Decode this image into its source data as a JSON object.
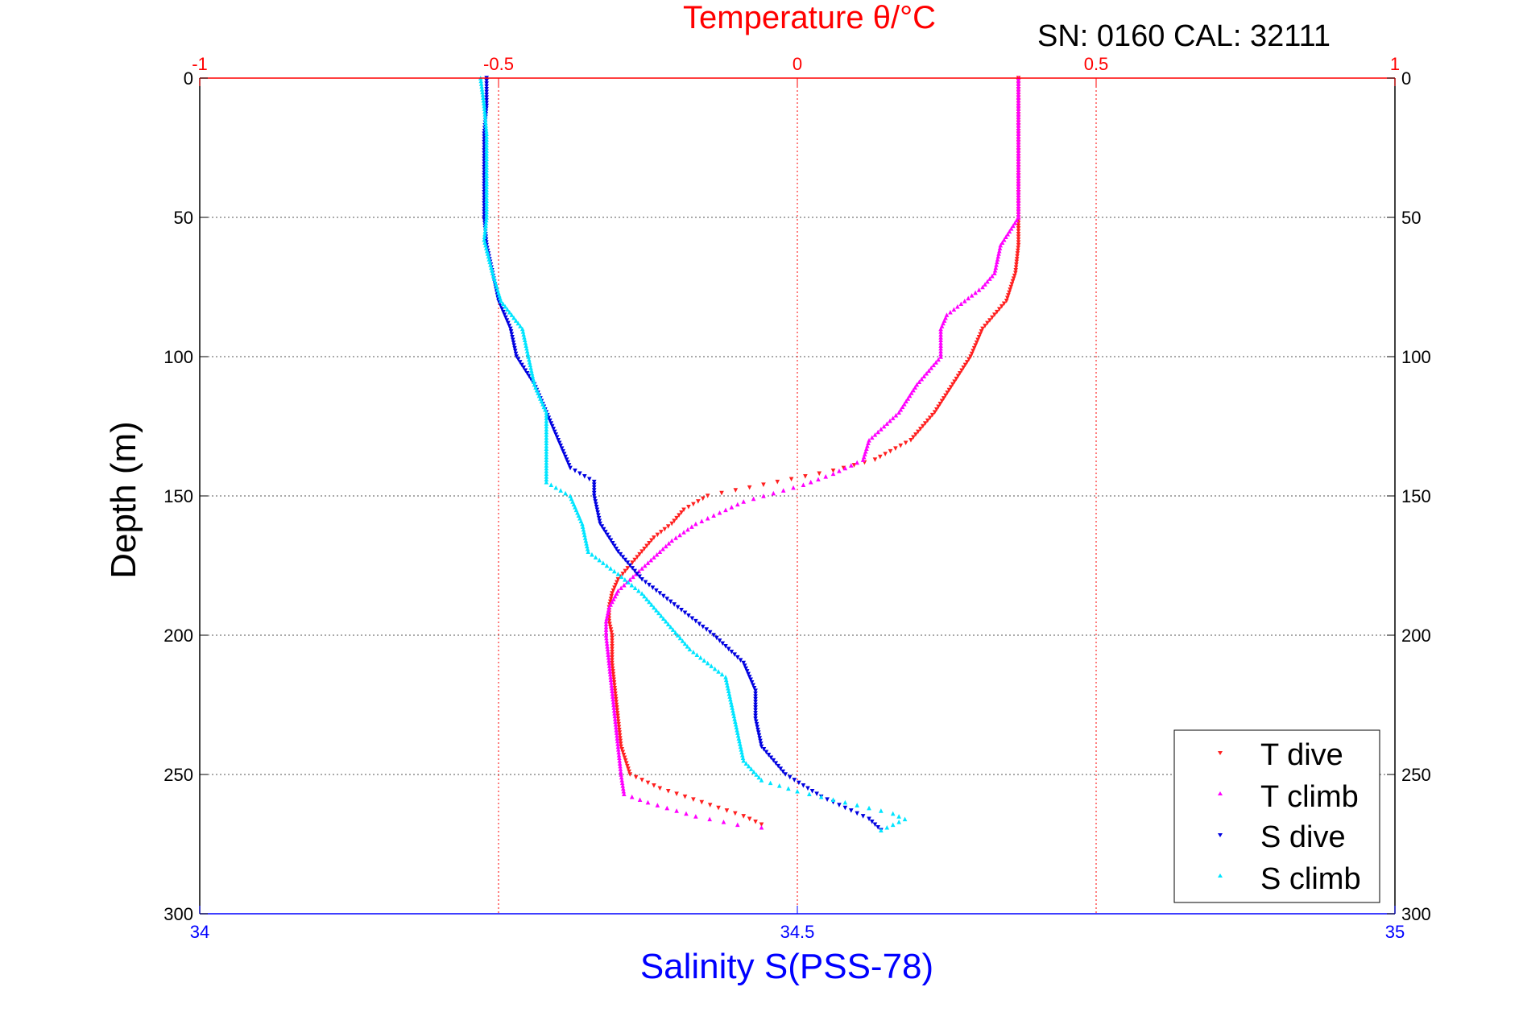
{
  "chart_data": {
    "type": "scatter",
    "title": "Temperature θ/°C",
    "annotation": "SN: 0160  CAL: 32111",
    "xlabel": "Salinity S(PSS-78)",
    "ylabel": "Depth (m)",
    "x_top_label": "Temperature θ/°C",
    "x_bottom_range": [
      34,
      35
    ],
    "x_top_range": [
      -1,
      1
    ],
    "y_range": [
      0,
      300
    ],
    "y_reversed": true,
    "x_bottom_ticks": [
      "34",
      "34.5",
      "35"
    ],
    "x_top_ticks": [
      "-1",
      "-0.5",
      "0",
      "0.5",
      "1"
    ],
    "y_ticks": [
      "0",
      "50",
      "100",
      "150",
      "200",
      "250",
      "300"
    ],
    "grid": true,
    "legend_position": "bottom-right",
    "colors": {
      "temperature_axis": "#ff0000",
      "salinity_axis": "#0000ff",
      "t_dive": "#ff2020",
      "t_climb": "#ff00ff",
      "s_dive": "#0000e0",
      "s_climb": "#00e5ff"
    },
    "series": [
      {
        "name": "T dive",
        "axis": "temperature",
        "marker": "down-triangle",
        "color": "#ff2020",
        "points": [
          [
            0.37,
            0
          ],
          [
            0.37,
            10
          ],
          [
            0.37,
            20
          ],
          [
            0.37,
            30
          ],
          [
            0.37,
            40
          ],
          [
            0.37,
            50
          ],
          [
            0.37,
            60
          ],
          [
            0.365,
            70
          ],
          [
            0.35,
            80
          ],
          [
            0.31,
            90
          ],
          [
            0.29,
            100
          ],
          [
            0.26,
            110
          ],
          [
            0.23,
            120
          ],
          [
            0.19,
            130
          ],
          [
            0.13,
            137
          ],
          [
            0.06,
            141
          ],
          [
            -0.01,
            144
          ],
          [
            -0.08,
            147
          ],
          [
            -0.15,
            150
          ],
          [
            -0.19,
            155
          ],
          [
            -0.21,
            160
          ],
          [
            -0.24,
            165
          ],
          [
            -0.26,
            170
          ],
          [
            -0.28,
            175
          ],
          [
            -0.3,
            180
          ],
          [
            -0.31,
            185
          ],
          [
            -0.315,
            190
          ],
          [
            -0.315,
            195
          ],
          [
            -0.31,
            200
          ],
          [
            -0.31,
            210
          ],
          [
            -0.305,
            220
          ],
          [
            -0.3,
            230
          ],
          [
            -0.295,
            240
          ],
          [
            -0.28,
            250
          ],
          [
            -0.23,
            255
          ],
          [
            -0.16,
            260
          ],
          [
            -0.09,
            265
          ],
          [
            -0.06,
            268
          ]
        ]
      },
      {
        "name": "T climb",
        "axis": "temperature",
        "marker": "up-triangle",
        "color": "#ff00ff",
        "points": [
          [
            0.37,
            0
          ],
          [
            0.37,
            10
          ],
          [
            0.37,
            20
          ],
          [
            0.37,
            30
          ],
          [
            0.37,
            40
          ],
          [
            0.37,
            50
          ],
          [
            0.34,
            60
          ],
          [
            0.33,
            70
          ],
          [
            0.31,
            75
          ],
          [
            0.28,
            80
          ],
          [
            0.25,
            85
          ],
          [
            0.24,
            90
          ],
          [
            0.24,
            100
          ],
          [
            0.2,
            110
          ],
          [
            0.17,
            120
          ],
          [
            0.12,
            130
          ],
          [
            0.11,
            137
          ],
          [
            0.06,
            142
          ],
          [
            0.01,
            146
          ],
          [
            -0.04,
            149
          ],
          [
            -0.09,
            152
          ],
          [
            -0.13,
            156
          ],
          [
            -0.17,
            160
          ],
          [
            -0.21,
            166
          ],
          [
            -0.24,
            172
          ],
          [
            -0.27,
            178
          ],
          [
            -0.3,
            184
          ],
          [
            -0.315,
            190
          ],
          [
            -0.32,
            195
          ],
          [
            -0.32,
            200
          ],
          [
            -0.315,
            210
          ],
          [
            -0.31,
            220
          ],
          [
            -0.305,
            230
          ],
          [
            -0.3,
            240
          ],
          [
            -0.295,
            250
          ],
          [
            -0.29,
            257
          ],
          [
            -0.25,
            260
          ],
          [
            -0.17,
            265
          ],
          [
            -0.1,
            268
          ],
          [
            -0.06,
            269
          ]
        ]
      },
      {
        "name": "S dive",
        "axis": "salinity",
        "marker": "down-triangle",
        "color": "#0000e0",
        "points": [
          [
            34.24,
            0
          ],
          [
            34.24,
            10
          ],
          [
            34.238,
            20
          ],
          [
            34.238,
            30
          ],
          [
            34.238,
            40
          ],
          [
            34.238,
            50
          ],
          [
            34.24,
            60
          ],
          [
            34.245,
            70
          ],
          [
            34.25,
            80
          ],
          [
            34.26,
            90
          ],
          [
            34.265,
            100
          ],
          [
            34.28,
            110
          ],
          [
            34.29,
            120
          ],
          [
            34.3,
            130
          ],
          [
            34.31,
            140
          ],
          [
            34.33,
            145
          ],
          [
            34.33,
            150
          ],
          [
            34.335,
            160
          ],
          [
            34.35,
            170
          ],
          [
            34.37,
            180
          ],
          [
            34.4,
            190
          ],
          [
            34.43,
            200
          ],
          [
            34.455,
            210
          ],
          [
            34.465,
            220
          ],
          [
            34.465,
            230
          ],
          [
            34.47,
            240
          ],
          [
            34.49,
            250
          ],
          [
            34.52,
            258
          ],
          [
            34.54,
            262
          ],
          [
            34.56,
            266
          ],
          [
            34.57,
            270
          ]
        ]
      },
      {
        "name": "S climb",
        "axis": "salinity",
        "marker": "up-triangle",
        "color": "#00e5ff",
        "points": [
          [
            34.235,
            0
          ],
          [
            34.238,
            10
          ],
          [
            34.24,
            20
          ],
          [
            34.24,
            30
          ],
          [
            34.24,
            40
          ],
          [
            34.24,
            50
          ],
          [
            34.238,
            58
          ],
          [
            34.245,
            70
          ],
          [
            34.252,
            80
          ],
          [
            34.27,
            90
          ],
          [
            34.275,
            100
          ],
          [
            34.28,
            110
          ],
          [
            34.29,
            120
          ],
          [
            34.29,
            130
          ],
          [
            34.29,
            145
          ],
          [
            34.31,
            150
          ],
          [
            34.32,
            160
          ],
          [
            34.325,
            170
          ],
          [
            34.35,
            178
          ],
          [
            34.37,
            185
          ],
          [
            34.39,
            195
          ],
          [
            34.41,
            205
          ],
          [
            34.44,
            215
          ],
          [
            34.445,
            225
          ],
          [
            34.45,
            235
          ],
          [
            34.455,
            245
          ],
          [
            34.47,
            252
          ],
          [
            34.5,
            256
          ],
          [
            34.54,
            260
          ],
          [
            34.58,
            264
          ],
          [
            34.59,
            266
          ],
          [
            34.57,
            270
          ]
        ]
      }
    ]
  }
}
